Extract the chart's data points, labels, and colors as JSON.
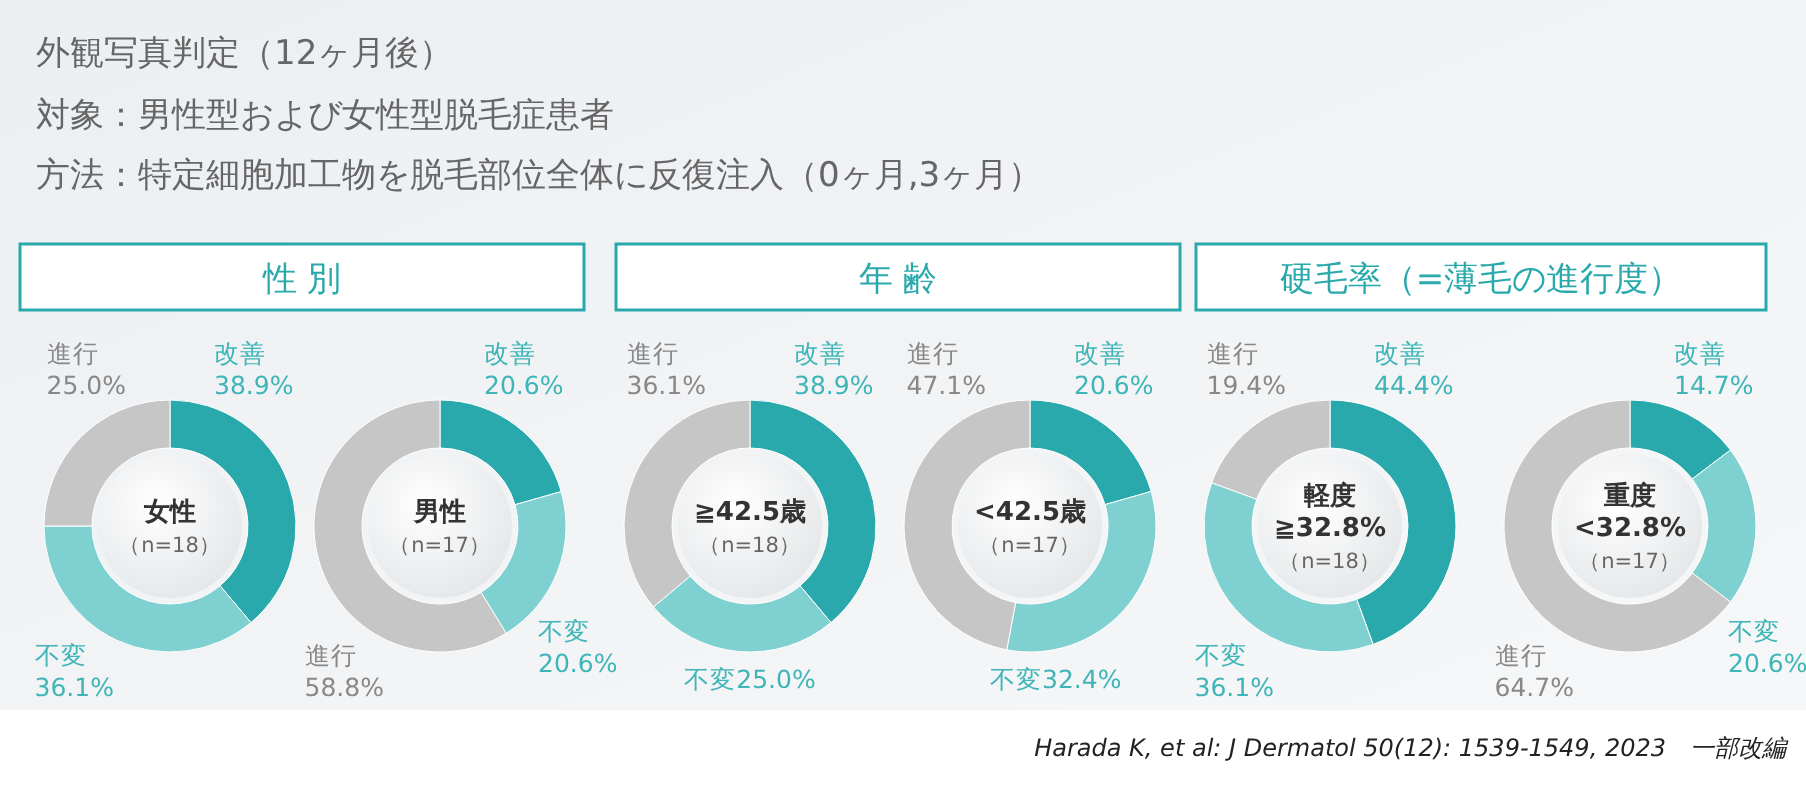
{
  "chart_data": [
    {
      "type": "other",
      "title": "外観写真判定（12ヶ月後）",
      "annotations": [
        "対象：男性型および女性型脱毛症患者",
        "方法：特定細胞加工物を脱毛部位全体に反復注入（0ヶ月,3ヶ月）"
      ]
    },
    {
      "type": "other",
      "title": "性 別"
    },
    {
      "type": "donut",
      "annotations": [
        "女性",
        "（n=18）"
      ],
      "categories": [
        "改善",
        "不変",
        "進行"
      ],
      "values": [
        38.9,
        36.1,
        25.0
      ],
      "value_labels": [
        "38.9%",
        "36.1%",
        "25.0%"
      ],
      "colors": [
        "#2aa9ad",
        "#7fd0d0",
        "#c6c6c6"
      ]
    },
    {
      "type": "donut",
      "annotations": [
        "男性",
        "（n=17）"
      ],
      "categories": [
        "改善",
        "不変",
        "進行"
      ],
      "values": [
        20.6,
        20.6,
        58.8
      ],
      "value_labels": [
        "20.6%",
        "20.6%",
        "58.8%"
      ],
      "colors": [
        "#2aa9ad",
        "#7fd0d0",
        "#c6c6c6"
      ]
    },
    {
      "type": "other",
      "title": "年 齢"
    },
    {
      "type": "donut",
      "annotations": [
        "≧42.5歳",
        "（n=18）"
      ],
      "categories": [
        "改善",
        "不変",
        "進行"
      ],
      "values": [
        38.9,
        25.0,
        36.1
      ],
      "value_labels": [
        "38.9%",
        "25.0%",
        "36.1%"
      ],
      "colors": [
        "#2aa9ad",
        "#7fd0d0",
        "#c6c6c6"
      ]
    },
    {
      "type": "donut",
      "annotations": [
        "<42.5歳",
        "（n=17）"
      ],
      "categories": [
        "改善",
        "不変",
        "進行"
      ],
      "values": [
        20.6,
        32.4,
        47.1
      ],
      "value_labels": [
        "20.6%",
        "32.4%",
        "47.1%"
      ],
      "colors": [
        "#2aa9ad",
        "#7fd0d0",
        "#c6c6c6"
      ]
    },
    {
      "type": "other",
      "title": "硬毛率（=薄毛の進行度）"
    },
    {
      "type": "donut",
      "annotations": [
        "軽度",
        "≧32.8%",
        "（n=18）"
      ],
      "categories": [
        "改善",
        "不変",
        "進行"
      ],
      "values": [
        44.4,
        36.1,
        19.4
      ],
      "value_labels": [
        "44.4%",
        "36.1%",
        "19.4%"
      ],
      "colors": [
        "#2aa9ad",
        "#7fd0d0",
        "#c6c6c6"
      ]
    },
    {
      "type": "donut",
      "annotations": [
        "重度",
        "<32.8%",
        "（n=17）"
      ],
      "categories": [
        "改善",
        "不変",
        "進行"
      ],
      "values": [
        14.7,
        20.6,
        64.7
      ],
      "value_labels": [
        "14.7%",
        "20.6%",
        "64.7%"
      ],
      "colors": [
        "#2aa9ad",
        "#7fd0d0",
        "#c6c6c6"
      ]
    },
    {
      "type": "other",
      "annotations": [
        "Harada K, et al: J Dermatol 50(12): 1539-1549, 2023　一部改編"
      ]
    }
  ]
}
